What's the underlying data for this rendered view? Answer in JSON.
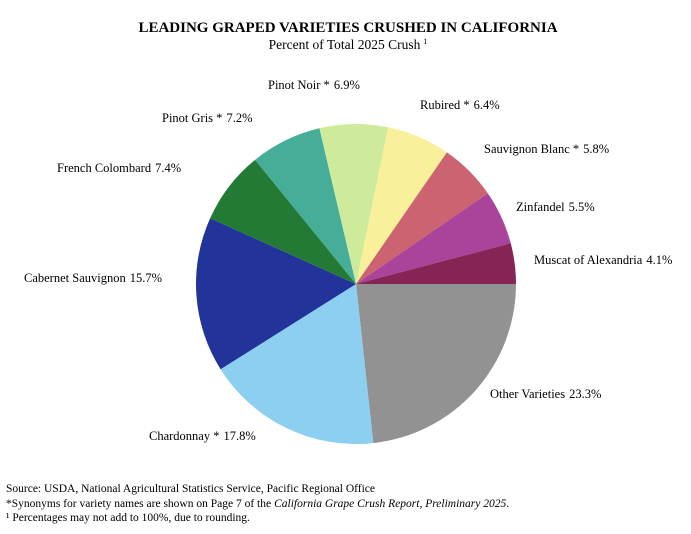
{
  "chart_data": {
    "type": "pie",
    "title": "LEADING GRAPED VARIETIES CRUSHED IN CALIFORNIA",
    "subtitle": "Percent of Total 2025 Crush",
    "subtitle_footnote_mark": "1",
    "categories": [
      "Other Varieties",
      "Chardonnay *",
      "Cabernet Sauvignon",
      "French Colombard",
      "Pinot Gris *",
      "Pinot Noir *",
      "Rubired *",
      "Sauvignon Blanc *",
      "Zinfandel",
      "Muscat of Alexandria"
    ],
    "values": [
      23.3,
      17.8,
      15.7,
      7.4,
      7.2,
      6.9,
      6.4,
      5.8,
      5.5,
      4.1
    ],
    "value_labels": [
      "23.3%",
      "17.8%",
      "15.7%",
      "7.4%",
      "7.2%",
      "6.9%",
      "6.4%",
      "5.8%",
      "5.5%",
      "4.1%"
    ],
    "colors": [
      "#929292",
      "#8ccff0",
      "#22339a",
      "#237a35",
      "#45ad98",
      "#cdeb9a",
      "#f8f09a",
      "#cc6370",
      "#a9449a",
      "#862456"
    ],
    "source": "Source: USDA, National Agricultural Statistics Service, Pacific Regional Office",
    "note": {
      "before": "*Synonyms for variety names are shown on Page 7 of the",
      "italic": "California Grape Crush Report, Preliminary 2025",
      "after": "."
    },
    "footnote": "¹ Percentages may not add to 100%, due to rounding."
  }
}
